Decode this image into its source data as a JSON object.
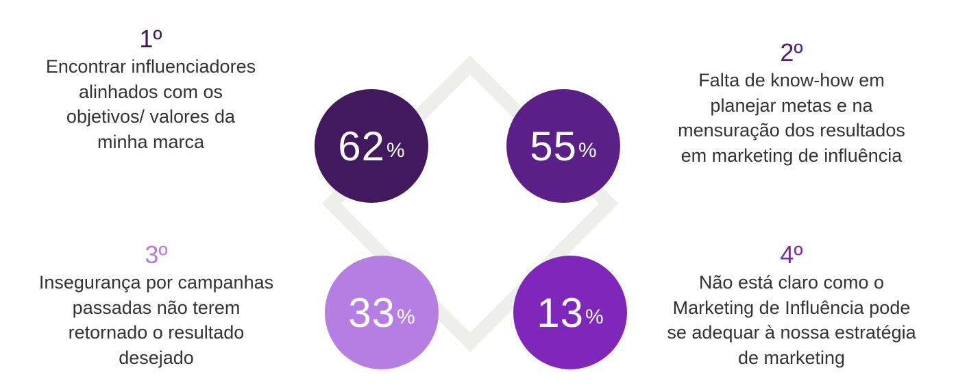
{
  "colors": {
    "dark_purple": "#41195e",
    "purple": "#5a2088",
    "lilac": "#b47ee3",
    "violet": "#7f27ba",
    "diamond": "#eeeeea"
  },
  "items": [
    {
      "rank": "1º",
      "percent": "62",
      "percent_sign": "%",
      "lines": [
        "Encontrar influenciadores",
        "alinhados com os",
        "objetivos/ valores da",
        "minha marca"
      ]
    },
    {
      "rank": "2º",
      "percent": "55",
      "percent_sign": "%",
      "lines": [
        "Falta de know-how em",
        "planejar metas e na",
        "mensuração dos resultados",
        "em marketing de influência"
      ]
    },
    {
      "rank": "3º",
      "percent": "33",
      "percent_sign": "%",
      "lines": [
        "Insegurança por campanhas",
        "passadas não terem",
        "retornado o resultado",
        "desejado"
      ]
    },
    {
      "rank": "4º",
      "percent": "13",
      "percent_sign": "%",
      "lines": [
        "Não está claro como o",
        "Marketing de Influência pode",
        "se adequar à nossa estratégia",
        "de marketing"
      ]
    }
  ]
}
